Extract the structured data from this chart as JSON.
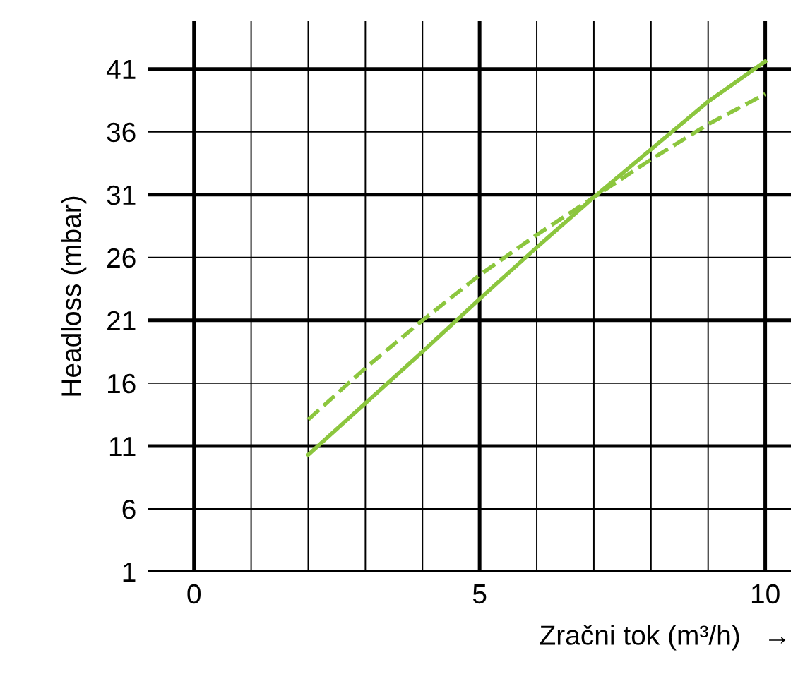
{
  "chart_data": {
    "type": "line",
    "xlabel": "Zračni tok (m³/h)   →",
    "ylabel": "Headloss (mbar)",
    "x": [
      2,
      3,
      4,
      5,
      6,
      7,
      8,
      9,
      10
    ],
    "series": [
      {
        "color": "#8cc63e",
        "line_style": "solid",
        "values": [
          10.3,
          14.4,
          18.5,
          22.7,
          26.8,
          30.8,
          34.6,
          38.4,
          41.6
        ]
      },
      {
        "color": "#8cc63e",
        "line_style": "dashed",
        "values": [
          13.1,
          17.2,
          21.0,
          24.6,
          27.8,
          30.8,
          33.8,
          36.6,
          39.0
        ]
      }
    ],
    "xlim": [
      -0.8,
      10.45
    ],
    "ylim": [
      1,
      44.8
    ],
    "xticks": [
      0,
      {
        "value": 1,
        "label": null
      },
      {
        "value": 2,
        "label": null
      },
      {
        "value": 3,
        "label": null
      },
      {
        "value": 4,
        "label": null
      },
      5,
      {
        "value": 6,
        "label": null
      },
      {
        "value": 7,
        "label": null
      },
      {
        "value": 8,
        "label": null
      },
      {
        "value": 9,
        "label": null
      },
      10
    ],
    "yticks": [
      1,
      6,
      11,
      16,
      21,
      26,
      31,
      36,
      41
    ],
    "grid": true,
    "marker": "none"
  }
}
